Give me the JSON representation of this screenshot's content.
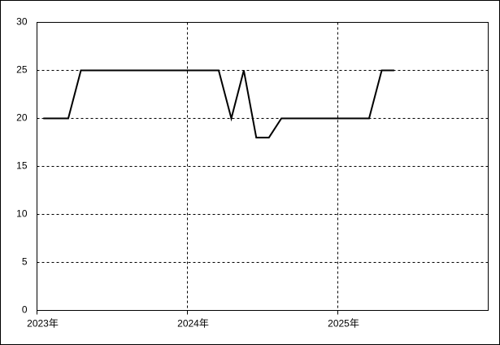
{
  "chart_data": {
    "type": "line",
    "x": [
      2023.042,
      2023.125,
      2023.208,
      2023.292,
      2023.375,
      2023.458,
      2023.542,
      2023.625,
      2023.708,
      2023.792,
      2023.875,
      2023.958,
      2024.042,
      2024.125,
      2024.208,
      2024.292,
      2024.375,
      2024.458,
      2024.542,
      2024.625,
      2024.708,
      2024.792,
      2024.875,
      2024.958,
      2025.042,
      2025.125,
      2025.208,
      2025.292,
      2025.375
    ],
    "series": [
      {
        "color": "#000000",
        "values": [
          20,
          20,
          20,
          25,
          25,
          25,
          25,
          25,
          25,
          25,
          25,
          25,
          25,
          25,
          25,
          20,
          25,
          18,
          18,
          20,
          20,
          20,
          20,
          20,
          20,
          20,
          20,
          25,
          25
        ]
      }
    ],
    "xlim": [
      2023,
      2026
    ],
    "xticks": [
      {
        "value": 2023,
        "label": "2023年"
      },
      {
        "value": 2024,
        "label": "2024年"
      },
      {
        "value": 2025,
        "label": "2025年"
      }
    ],
    "ylim": [
      0,
      30
    ],
    "yticks": [
      0,
      5,
      10,
      15,
      20,
      25,
      30
    ],
    "grid": true
  }
}
